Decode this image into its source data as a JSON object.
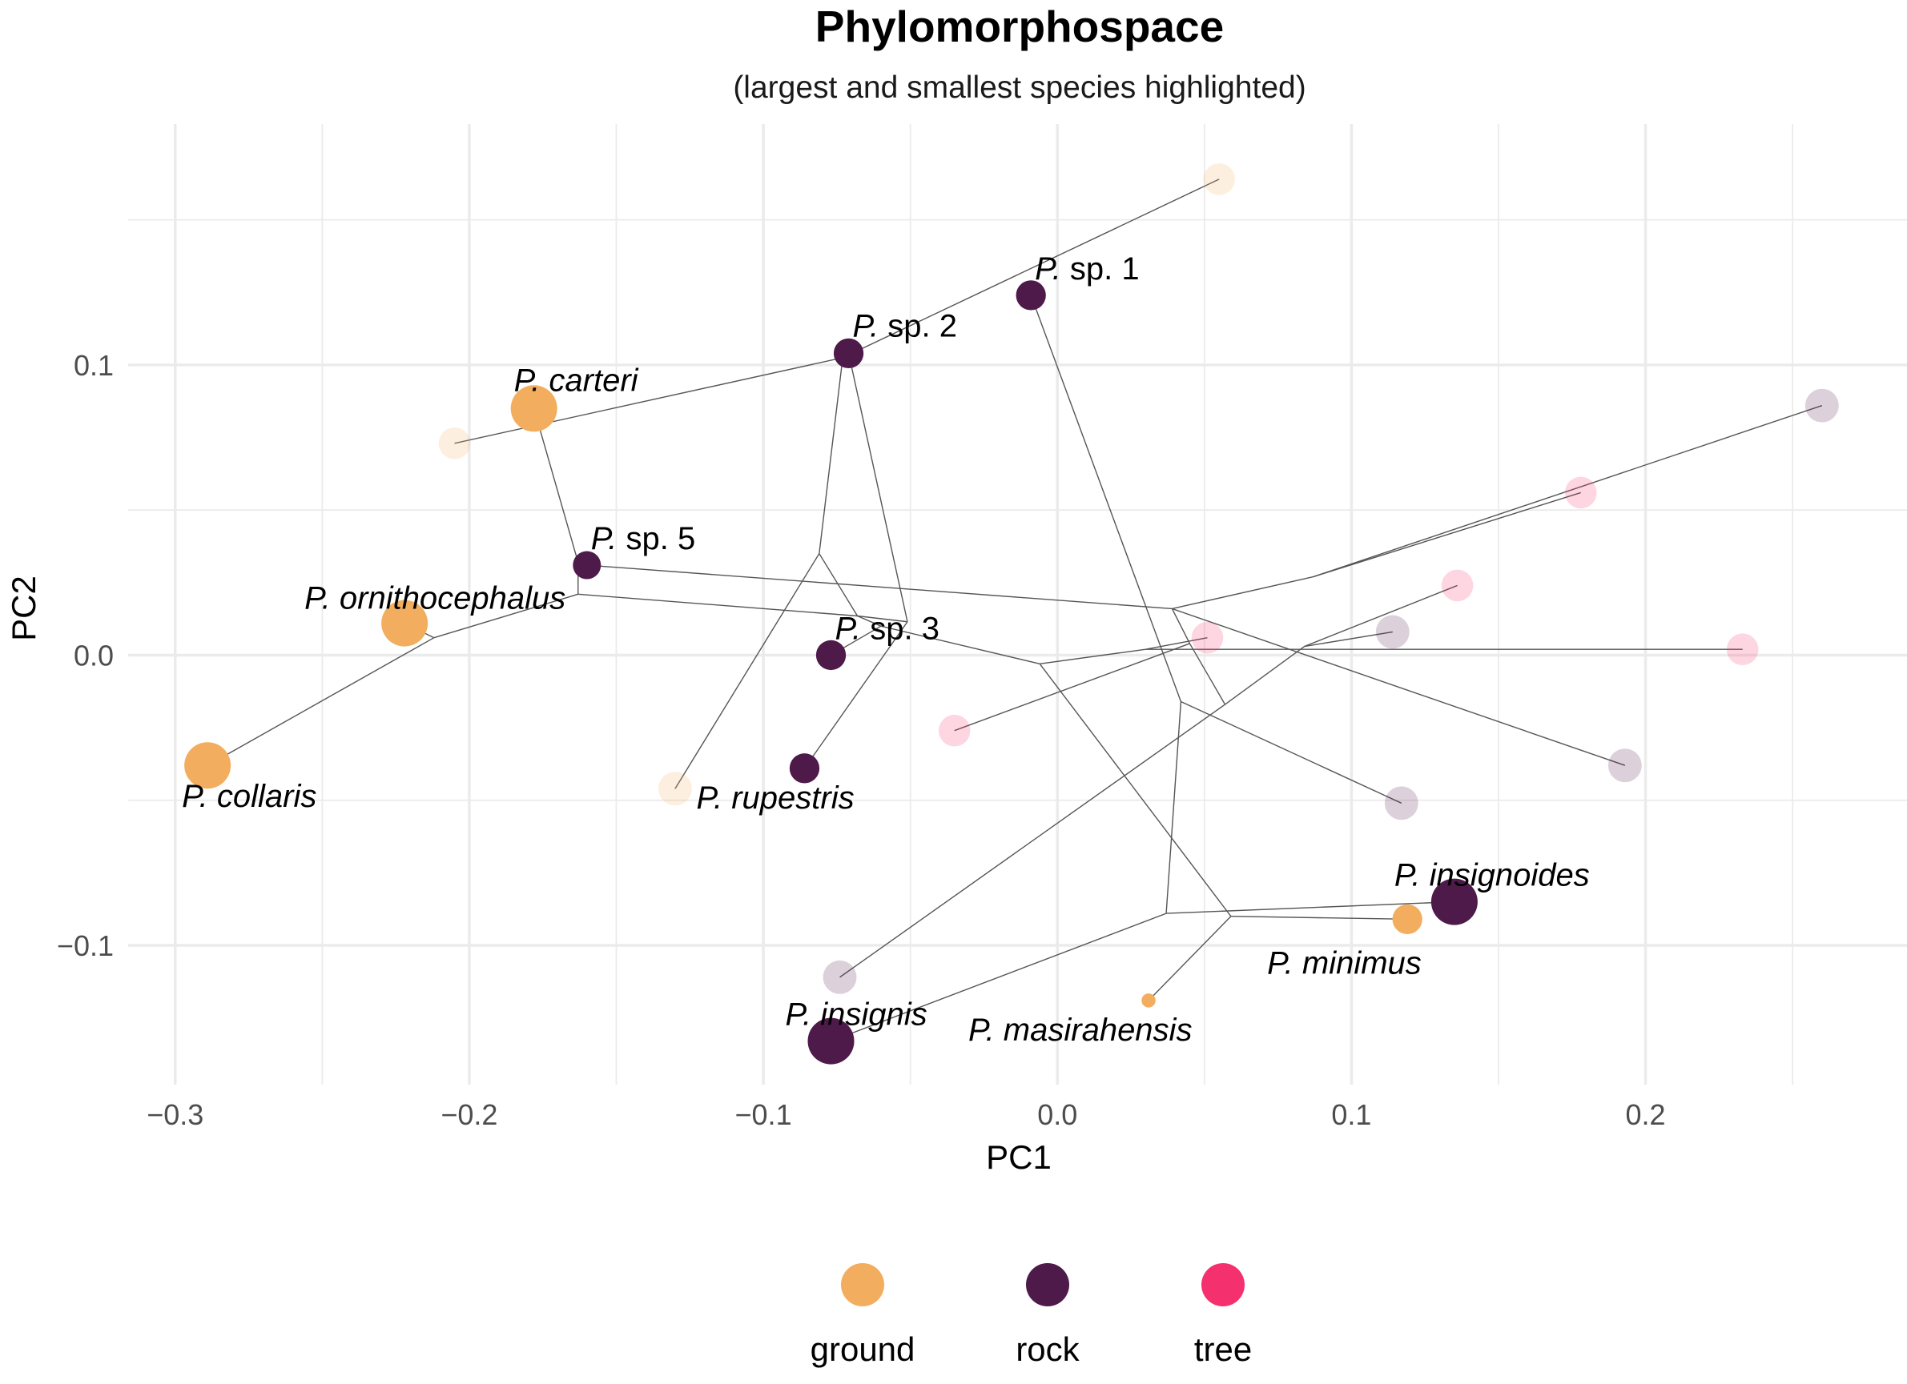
{
  "chart_data": {
    "type": "scatter",
    "title": "Phylomorphospace",
    "subtitle": "(largest and smallest species highlighted)",
    "xlabel": "PC1",
    "ylabel": "PC2",
    "xlim": [
      -0.316,
      0.29
    ],
    "ylim": [
      -0.148,
      0.183
    ],
    "x_major_ticks": [
      -0.3,
      -0.2,
      -0.1,
      0.0,
      0.1,
      0.2
    ],
    "x_tick_labels": [
      "−0.3",
      "−0.2",
      "−0.1",
      "0.0",
      "0.1",
      "0.2"
    ],
    "x_minor_ticks": [
      -0.25,
      -0.15,
      -0.05,
      0.05,
      0.15,
      0.25
    ],
    "y_major_ticks": [
      -0.1,
      0.0,
      0.1
    ],
    "y_tick_labels": [
      "−0.1",
      "0.0",
      "0.1"
    ],
    "y_minor_ticks": [
      -0.05,
      0.05,
      0.15
    ],
    "grid": true,
    "legend_position": "bottom",
    "legend": [
      {
        "label": "ground",
        "color": "#F2AE5E"
      },
      {
        "label": "rock",
        "color": "#4E1A4A"
      },
      {
        "label": "tree",
        "color": "#F5306F"
      }
    ],
    "colors": {
      "ground": "#F2AE5E",
      "rock": "#4E1A4A",
      "tree": "#F5306F"
    },
    "species": [
      {
        "genus": "P.",
        "epithet": "carteri",
        "italic_epithet": true,
        "x": -0.178,
        "y": 0.085,
        "habitat": "ground",
        "size": 1.0,
        "highlight": true
      },
      {
        "genus": "P.",
        "epithet": "ornithocephalus",
        "italic_epithet": true,
        "x": -0.222,
        "y": 0.011,
        "habitat": "ground",
        "size": 1.0,
        "highlight": true
      },
      {
        "genus": "P.",
        "epithet": "collaris",
        "italic_epithet": true,
        "x": -0.289,
        "y": -0.038,
        "habitat": "ground",
        "size": 1.0,
        "highlight": true
      },
      {
        "genus": "P.",
        "epithet": "minimus",
        "italic_epithet": true,
        "x": 0.119,
        "y": -0.091,
        "habitat": "ground",
        "size": 0.55,
        "highlight": true
      },
      {
        "genus": "P.",
        "epithet": "masirahensis",
        "italic_epithet": true,
        "x": 0.031,
        "y": -0.119,
        "habitat": "ground",
        "size": 0.12,
        "highlight": true
      },
      {
        "genus": "P.",
        "epithet": "sp. 1",
        "italic_epithet": false,
        "x": -0.009,
        "y": 0.124,
        "habitat": "rock",
        "size": 0.55,
        "highlight": true
      },
      {
        "genus": "P.",
        "epithet": "sp. 2",
        "italic_epithet": false,
        "x": -0.071,
        "y": 0.104,
        "habitat": "rock",
        "size": 0.55,
        "highlight": true
      },
      {
        "genus": "P.",
        "epithet": "sp. 5",
        "italic_epithet": false,
        "x": -0.16,
        "y": 0.031,
        "habitat": "rock",
        "size": 0.5,
        "highlight": true
      },
      {
        "genus": "P.",
        "epithet": "sp. 3",
        "italic_epithet": false,
        "x": -0.077,
        "y": 0.0,
        "habitat": "rock",
        "size": 0.55,
        "highlight": true
      },
      {
        "genus": "P.",
        "epithet": "rupestris",
        "italic_epithet": true,
        "x": -0.086,
        "y": -0.039,
        "habitat": "rock",
        "size": 0.55,
        "highlight": true
      },
      {
        "genus": "P.",
        "epithet": "insignoides",
        "italic_epithet": true,
        "x": 0.135,
        "y": -0.085,
        "habitat": "rock",
        "size": 1.0,
        "highlight": true
      },
      {
        "genus": "P.",
        "epithet": "insignis",
        "italic_epithet": true,
        "x": -0.077,
        "y": -0.133,
        "habitat": "rock",
        "size": 1.0,
        "highlight": true
      },
      {
        "x": 0.055,
        "y": 0.164,
        "habitat": "ground",
        "size": 0.6,
        "highlight": false
      },
      {
        "x": -0.205,
        "y": 0.073,
        "habitat": "ground",
        "size": 0.6,
        "highlight": false
      },
      {
        "x": -0.13,
        "y": -0.046,
        "habitat": "ground",
        "size": 0.65,
        "highlight": false
      },
      {
        "x": 0.26,
        "y": 0.086,
        "habitat": "rock",
        "size": 0.65,
        "highlight": false
      },
      {
        "x": 0.114,
        "y": 0.008,
        "habitat": "rock",
        "size": 0.65,
        "highlight": false
      },
      {
        "x": 0.117,
        "y": -0.051,
        "habitat": "rock",
        "size": 0.65,
        "highlight": false
      },
      {
        "x": 0.193,
        "y": -0.038,
        "habitat": "rock",
        "size": 0.65,
        "highlight": false
      },
      {
        "x": -0.074,
        "y": -0.111,
        "habitat": "rock",
        "size": 0.65,
        "highlight": false
      },
      {
        "x": 0.178,
        "y": 0.056,
        "habitat": "tree",
        "size": 0.6,
        "highlight": false
      },
      {
        "x": 0.136,
        "y": 0.024,
        "habitat": "tree",
        "size": 0.6,
        "highlight": false
      },
      {
        "x": 0.051,
        "y": 0.006,
        "habitat": "tree",
        "size": 0.6,
        "highlight": false
      },
      {
        "x": 0.233,
        "y": 0.002,
        "habitat": "tree",
        "size": 0.6,
        "highlight": false
      },
      {
        "x": -0.035,
        "y": -0.026,
        "habitat": "tree",
        "size": 0.6,
        "highlight": false
      }
    ],
    "tree_edges": [
      [
        [
          0.055,
          0.164
        ],
        [
          -0.073,
          0.1025
        ]
      ],
      [
        [
          -0.205,
          0.073
        ],
        [
          -0.073,
          0.1025
        ]
      ],
      [
        [
          -0.178,
          0.085
        ],
        [
          -0.163,
          0.032
        ]
      ],
      [
        [
          -0.163,
          0.032
        ],
        [
          -0.163,
          0.021
        ]
      ],
      [
        [
          -0.163,
          0.021
        ],
        [
          -0.068,
          0.0135
        ]
      ],
      [
        [
          -0.16,
          0.031
        ],
        [
          0.039,
          0.016
        ]
      ],
      [
        [
          -0.163,
          0.021
        ],
        [
          -0.212,
          0.006
        ]
      ],
      [
        [
          -0.212,
          0.006
        ],
        [
          -0.222,
          0.011
        ]
      ],
      [
        [
          -0.212,
          0.006
        ],
        [
          -0.289,
          -0.038
        ]
      ],
      [
        [
          -0.073,
          0.1025
        ],
        [
          -0.081,
          0.035
        ]
      ],
      [
        [
          -0.073,
          0.1025
        ],
        [
          -0.071,
          0.104
        ]
      ],
      [
        [
          -0.081,
          0.035
        ],
        [
          -0.13,
          -0.046
        ]
      ],
      [
        [
          -0.081,
          0.035
        ],
        [
          -0.068,
          0.0135
        ]
      ],
      [
        [
          -0.068,
          0.0135
        ],
        [
          -0.051,
          0.0115
        ]
      ],
      [
        [
          -0.051,
          0.0115
        ],
        [
          -0.071,
          0.104
        ]
      ],
      [
        [
          -0.051,
          0.0115
        ],
        [
          -0.086,
          -0.039
        ]
      ],
      [
        [
          -0.068,
          0.0135
        ],
        [
          -0.06,
          0.01
        ]
      ],
      [
        [
          -0.06,
          0.01
        ],
        [
          -0.077,
          0.0
        ]
      ],
      [
        [
          -0.06,
          0.01
        ],
        [
          -0.006,
          -0.003
        ]
      ],
      [
        [
          -0.009,
          0.124
        ],
        [
          0.042,
          -0.016
        ]
      ],
      [
        [
          -0.006,
          -0.003
        ],
        [
          0.059,
          -0.09
        ]
      ],
      [
        [
          -0.006,
          -0.003
        ],
        [
          0.03,
          0.002
        ]
      ],
      [
        [
          0.039,
          0.016
        ],
        [
          0.087,
          0.027
        ]
      ],
      [
        [
          0.039,
          0.016
        ],
        [
          0.045,
          0.004
        ]
      ],
      [
        [
          0.045,
          0.004
        ],
        [
          0.057,
          -0.017
        ]
      ],
      [
        [
          0.042,
          -0.016
        ],
        [
          0.117,
          -0.051
        ]
      ],
      [
        [
          0.042,
          -0.016
        ],
        [
          0.037,
          -0.089
        ]
      ],
      [
        [
          0.037,
          -0.089
        ],
        [
          0.135,
          -0.085
        ]
      ],
      [
        [
          0.037,
          -0.089
        ],
        [
          -0.077,
          -0.133
        ]
      ],
      [
        [
          0.059,
          -0.09
        ],
        [
          0.119,
          -0.091
        ]
      ],
      [
        [
          0.059,
          -0.09
        ],
        [
          0.031,
          -0.119
        ]
      ],
      [
        [
          0.057,
          -0.017
        ],
        [
          -0.074,
          -0.111
        ]
      ],
      [
        [
          0.057,
          -0.017
        ],
        [
          0.084,
          0.003
        ]
      ],
      [
        [
          0.084,
          0.003
        ],
        [
          0.114,
          0.008
        ]
      ],
      [
        [
          0.084,
          0.003
        ],
        [
          0.136,
          0.024
        ]
      ],
      [
        [
          0.03,
          0.002
        ],
        [
          0.051,
          0.006
        ]
      ],
      [
        [
          0.03,
          0.002
        ],
        [
          0.233,
          0.002
        ]
      ],
      [
        [
          0.087,
          0.027
        ],
        [
          0.26,
          0.086
        ]
      ],
      [
        [
          0.087,
          0.027
        ],
        [
          0.178,
          0.056
        ]
      ],
      [
        [
          0.045,
          0.004
        ],
        [
          -0.035,
          -0.026
        ]
      ],
      [
        [
          0.039,
          0.016
        ],
        [
          0.193,
          -0.038
        ]
      ]
    ]
  }
}
